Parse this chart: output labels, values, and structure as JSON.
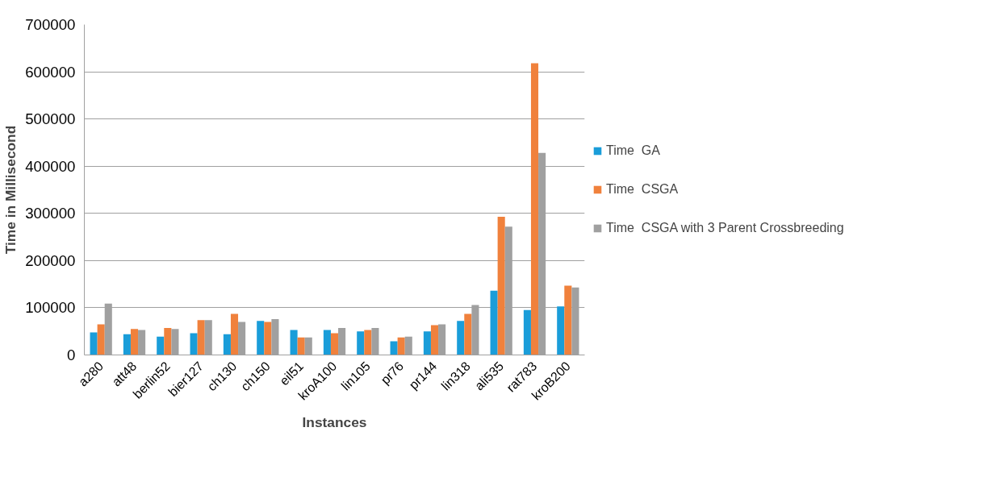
{
  "chart_data": {
    "type": "bar",
    "xlabel": "Instances",
    "ylabel": "Time in Millisecond",
    "categories": [
      "a280",
      "att48",
      "berlin52",
      "bier127",
      "ch130",
      "ch150",
      "eil51",
      "kroA100",
      "lin105",
      "pr76",
      "pr144",
      "lin318",
      "ali535",
      "rat783",
      "kroB200"
    ],
    "series": [
      {
        "name": "Time  GA",
        "color": "#1a9dd9",
        "values": [
          48000,
          44000,
          39000,
          46000,
          44000,
          72000,
          53000,
          53000,
          50000,
          29000,
          50000,
          72000,
          136000,
          95000,
          103000
        ]
      },
      {
        "name": "Time  CSGA",
        "color": "#f0813c",
        "values": [
          65000,
          55000,
          57000,
          74000,
          87000,
          70000,
          37000,
          46000,
          53000,
          37000,
          63000,
          87000,
          293000,
          618000,
          147000
        ]
      },
      {
        "name": "Time  CSGA with 3 Parent Crossbreeding",
        "color": "#a0a0a0",
        "values": [
          109000,
          53000,
          55000,
          74000,
          70000,
          76000,
          37000,
          57000,
          57000,
          39000,
          65000,
          106000,
          272000,
          428000,
          143000
        ]
      }
    ],
    "ylim": [
      0,
      700000
    ],
    "yticks": [
      0,
      100000,
      200000,
      300000,
      400000,
      500000,
      600000,
      700000
    ],
    "grid": "y",
    "legend": "right"
  }
}
